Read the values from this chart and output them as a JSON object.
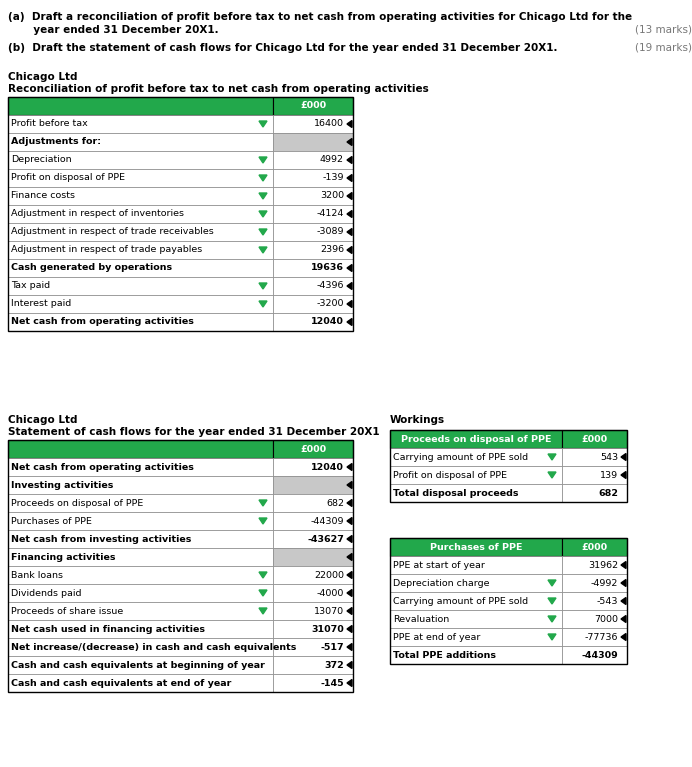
{
  "green": "#22A84B",
  "light_gray": "#C8C8C8",
  "white": "#FFFFFF",
  "black": "#000000",
  "dark_border": "#444444",
  "gray_border": "#888888",
  "intro_a_line1": "(a)  Draft a reconciliation of profit before tax to net cash from operating activities for Chicago Ltd for the",
  "intro_a_line2": "       year ended 31 December 20X1.",
  "intro_a_marks": "(13 marks)",
  "intro_b": "(b)  Draft the statement of cash flows for Chicago Ltd for the year ended 31 December 20X1.",
  "intro_b_marks": "(19 marks)",
  "table1_title1": "Chicago Ltd",
  "table1_title2": "Reconciliation of profit before tax to net cash from operating activities",
  "table1_rows": [
    {
      "label": "",
      "value": "£000",
      "bold": true,
      "header": true,
      "gray_val": false,
      "arrow_green": false,
      "arrow_black": false
    },
    {
      "label": "Profit before tax",
      "value": "16400",
      "bold": false,
      "header": false,
      "gray_val": false,
      "arrow_green": true,
      "arrow_black": true
    },
    {
      "label": "Adjustments for:",
      "value": "",
      "bold": true,
      "header": false,
      "gray_val": true,
      "arrow_green": false,
      "arrow_black": true
    },
    {
      "label": "Depreciation",
      "value": "4992",
      "bold": false,
      "header": false,
      "gray_val": false,
      "arrow_green": true,
      "arrow_black": true
    },
    {
      "label": "Profit on disposal of PPE",
      "value": "-139",
      "bold": false,
      "header": false,
      "gray_val": false,
      "arrow_green": true,
      "arrow_black": true
    },
    {
      "label": "Finance costs",
      "value": "3200",
      "bold": false,
      "header": false,
      "gray_val": false,
      "arrow_green": true,
      "arrow_black": true
    },
    {
      "label": "Adjustment in respect of inventories",
      "value": "-4124",
      "bold": false,
      "header": false,
      "gray_val": false,
      "arrow_green": true,
      "arrow_black": true
    },
    {
      "label": "Adjustment in respect of trade receivables",
      "value": "-3089",
      "bold": false,
      "header": false,
      "gray_val": false,
      "arrow_green": true,
      "arrow_black": true
    },
    {
      "label": "Adjustment in respect of trade payables",
      "value": "2396",
      "bold": false,
      "header": false,
      "gray_val": false,
      "arrow_green": true,
      "arrow_black": true
    },
    {
      "label": "Cash generated by operations",
      "value": "19636",
      "bold": true,
      "header": false,
      "gray_val": false,
      "arrow_green": false,
      "arrow_black": true
    },
    {
      "label": "Tax paid",
      "value": "-4396",
      "bold": false,
      "header": false,
      "gray_val": false,
      "arrow_green": true,
      "arrow_black": true
    },
    {
      "label": "Interest paid",
      "value": "-3200",
      "bold": false,
      "header": false,
      "gray_val": false,
      "arrow_green": true,
      "arrow_black": true
    },
    {
      "label": "Net cash from operating activities",
      "value": "12040",
      "bold": true,
      "header": false,
      "gray_val": false,
      "arrow_green": false,
      "arrow_black": true
    }
  ],
  "table2_title1": "Chicago Ltd",
  "table2_title2": "Statement of cash flows for the year ended 31 December 20X1",
  "table2_rows": [
    {
      "label": "",
      "value": "£000",
      "bold": true,
      "header": true,
      "gray_val": false,
      "arrow_green": false,
      "arrow_black": false
    },
    {
      "label": "Net cash from operating activities",
      "value": "12040",
      "bold": true,
      "header": false,
      "gray_val": false,
      "arrow_green": false,
      "arrow_black": true
    },
    {
      "label": "Investing activities",
      "value": "",
      "bold": true,
      "header": false,
      "gray_val": true,
      "arrow_green": false,
      "arrow_black": true
    },
    {
      "label": "Proceeds on disposal of PPE",
      "value": "682",
      "bold": false,
      "header": false,
      "gray_val": false,
      "arrow_green": true,
      "arrow_black": true
    },
    {
      "label": "Purchases of PPE",
      "value": "-44309",
      "bold": false,
      "header": false,
      "gray_val": false,
      "arrow_green": true,
      "arrow_black": true
    },
    {
      "label": "Net cash from investing activities",
      "value": "-43627",
      "bold": true,
      "header": false,
      "gray_val": false,
      "arrow_green": false,
      "arrow_black": true
    },
    {
      "label": "Financing activities",
      "value": "",
      "bold": true,
      "header": false,
      "gray_val": true,
      "arrow_green": false,
      "arrow_black": true
    },
    {
      "label": "Bank loans",
      "value": "22000",
      "bold": false,
      "header": false,
      "gray_val": false,
      "arrow_green": true,
      "arrow_black": true
    },
    {
      "label": "Dividends paid",
      "value": "-4000",
      "bold": false,
      "header": false,
      "gray_val": false,
      "arrow_green": true,
      "arrow_black": true
    },
    {
      "label": "Proceeds of share issue",
      "value": "13070",
      "bold": false,
      "header": false,
      "gray_val": false,
      "arrow_green": true,
      "arrow_black": true
    },
    {
      "label": "Net cash used in financing activities",
      "value": "31070",
      "bold": true,
      "header": false,
      "gray_val": false,
      "arrow_green": false,
      "arrow_black": true
    },
    {
      "label": "Net increase/(decrease) in cash and cash equivalents",
      "value": "-517",
      "bold": true,
      "header": false,
      "gray_val": false,
      "arrow_green": false,
      "arrow_black": true
    },
    {
      "label": "Cash and cash equivalents at beginning of year",
      "value": "372",
      "bold": true,
      "header": false,
      "gray_val": false,
      "arrow_green": false,
      "arrow_black": true
    },
    {
      "label": "Cash and cash equivalents at end of year",
      "value": "-145",
      "bold": true,
      "header": false,
      "gray_val": false,
      "arrow_green": false,
      "arrow_black": true
    }
  ],
  "workings_label": "Workings",
  "work1_rows": [
    {
      "label": "Proceeds on disposal of PPE",
      "value": "£000",
      "bold": true,
      "header": true,
      "gray_val": false,
      "arrow_green": false,
      "arrow_black": false
    },
    {
      "label": "Carrying amount of PPE sold",
      "value": "543",
      "bold": false,
      "header": false,
      "gray_val": false,
      "arrow_green": true,
      "arrow_black": true
    },
    {
      "label": "Profit on disposal of PPE",
      "value": "139",
      "bold": false,
      "header": false,
      "gray_val": false,
      "arrow_green": true,
      "arrow_black": true
    },
    {
      "label": "Total disposal proceeds",
      "value": "682",
      "bold": true,
      "header": false,
      "gray_val": false,
      "arrow_green": false,
      "arrow_black": false
    }
  ],
  "work2_rows": [
    {
      "label": "Purchases of PPE",
      "value": "£000",
      "bold": true,
      "header": true,
      "gray_val": false,
      "arrow_green": false,
      "arrow_black": false
    },
    {
      "label": "PPE at start of year",
      "value": "31962",
      "bold": false,
      "header": false,
      "gray_val": false,
      "arrow_green": false,
      "arrow_black": true
    },
    {
      "label": "Depreciation charge",
      "value": "-4992",
      "bold": false,
      "header": false,
      "gray_val": false,
      "arrow_green": true,
      "arrow_black": true
    },
    {
      "label": "Carrying amount of PPE sold",
      "value": "-543",
      "bold": false,
      "header": false,
      "gray_val": false,
      "arrow_green": true,
      "arrow_black": true
    },
    {
      "label": "Revaluation",
      "value": "7000",
      "bold": false,
      "header": false,
      "gray_val": false,
      "arrow_green": true,
      "arrow_black": true
    },
    {
      "label": "PPE at end of year",
      "value": "-77736",
      "bold": false,
      "header": false,
      "gray_val": false,
      "arrow_green": true,
      "arrow_black": true
    },
    {
      "label": "Total PPE additions",
      "value": "-44309",
      "bold": true,
      "header": false,
      "gray_val": false,
      "arrow_green": false,
      "arrow_black": false
    }
  ]
}
